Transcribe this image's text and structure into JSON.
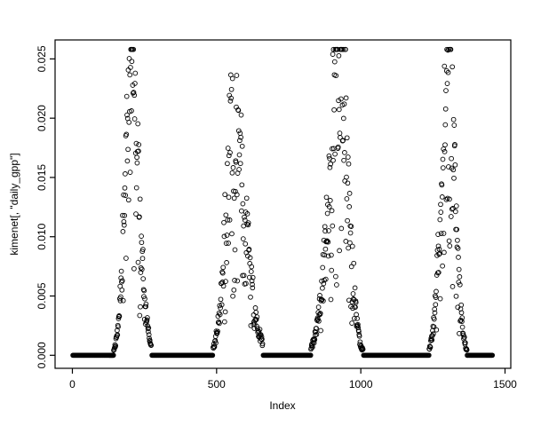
{
  "chart_data": {
    "type": "scatter",
    "title": "",
    "xlabel": "Index",
    "ylabel": "kimenet[, \"daily_gpp\"]",
    "marker": "open-circle",
    "point_color": "#000000",
    "background": "#ffffff",
    "grid": false,
    "legend": "none",
    "xlim": [
      0,
      1500
    ],
    "ylim": [
      0,
      0.025
    ],
    "x_range": [
      -60,
      1520
    ],
    "y_range": [
      -0.0011,
      0.0266
    ],
    "x_ticks": [
      0,
      500,
      1000,
      1500
    ],
    "x_tick_labels": [
      "0",
      "500",
      "1000",
      "1500"
    ],
    "y_ticks": [
      0,
      0.005,
      0.01,
      0.015,
      0.02,
      0.025
    ],
    "y_tick_labels": [
      "0.000",
      "0.005",
      "0.010",
      "0.015",
      "0.020",
      "0.025"
    ],
    "series_summary": "Daily GPP vs index (~0-1460): four seasonal bell-shaped bursts of scattered open-circle points peaking near 0.025, 0.020, 0.025 and 0.024 (centered near x=203, 557, 930 and 1303), separated by long dense runs of exact zeros forming a thick baseline at y=0. R base-graphics style: black box frame, outward ticks on left and bottom only, rotated y tick labels.",
    "segments": [
      {
        "type": "flat",
        "x0": 2,
        "x1": 128,
        "step": 2
      },
      {
        "type": "season",
        "x0": 129,
        "x1": 274,
        "step": 1.1,
        "peak_x": 203,
        "peak_y": 0.025,
        "rise_w": 21,
        "fall_w": 27,
        "noise": 0.22,
        "dropout": 0.2
      },
      {
        "type": "flat",
        "x0": 276,
        "x1": 487,
        "step": 2
      },
      {
        "type": "season",
        "x0": 488,
        "x1": 660,
        "step": 1.2,
        "peak_x": 557,
        "peak_y": 0.0198,
        "rise_w": 26,
        "fall_w": 42,
        "noise": 0.3,
        "dropout": 0.25
      },
      {
        "type": "flat",
        "x0": 662,
        "x1": 826,
        "step": 2
      },
      {
        "type": "season",
        "x0": 827,
        "x1": 1008,
        "step": 1.1,
        "peak_x": 930,
        "peak_y": 0.0252,
        "rise_w": 38,
        "fall_w": 27,
        "noise": 0.3,
        "dropout": 0.22
      },
      {
        "type": "flat",
        "x0": 1010,
        "x1": 1236,
        "step": 2
      },
      {
        "type": "season",
        "x0": 1237,
        "x1": 1372,
        "step": 1.1,
        "peak_x": 1303,
        "peak_y": 0.0242,
        "rise_w": 24,
        "fall_w": 23,
        "noise": 0.26,
        "dropout": 0.22
      },
      {
        "type": "flat",
        "x0": 1374,
        "x1": 1456,
        "step": 2
      }
    ]
  }
}
